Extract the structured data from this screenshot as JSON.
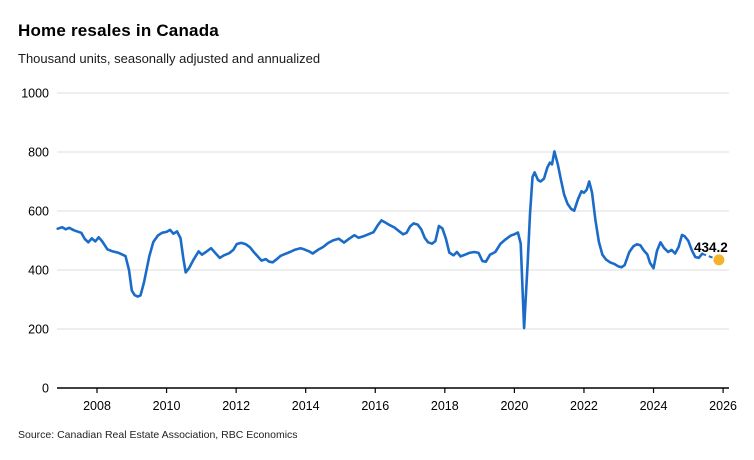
{
  "chart_data": {
    "type": "line",
    "title": "Home resales in Canada",
    "subtitle": "Thousand units, seasonally adjusted and annualized",
    "source": "Source: Canadian Real Estate Association, RBC Economics",
    "xlabel": "",
    "ylabel": "",
    "ylim": [
      0,
      1000
    ],
    "y_ticks": [
      0,
      200,
      400,
      600,
      800,
      1000
    ],
    "x_ticks": [
      2008,
      2010,
      2012,
      2014,
      2016,
      2018,
      2020,
      2022,
      2024,
      2026
    ],
    "xlim": [
      2006.85,
      2026.17
    ],
    "grid": "horizontal",
    "legend": "none",
    "colors": {
      "line": "#1B6CC8",
      "forecast_dot": "#F5B32B",
      "grid": "#DCDCDC",
      "axis": "#000000",
      "label": "#000000"
    },
    "series": [
      {
        "name": "Home resales",
        "color": "#1B6CC8",
        "points": [
          [
            2006.87,
            540
          ],
          [
            2007.0,
            545
          ],
          [
            2007.1,
            538
          ],
          [
            2007.2,
            543
          ],
          [
            2007.33,
            535
          ],
          [
            2007.45,
            530
          ],
          [
            2007.55,
            526
          ],
          [
            2007.65,
            505
          ],
          [
            2007.75,
            494
          ],
          [
            2007.85,
            507
          ],
          [
            2007.95,
            497
          ],
          [
            2008.05,
            511
          ],
          [
            2008.15,
            497
          ],
          [
            2008.3,
            470
          ],
          [
            2008.45,
            463
          ],
          [
            2008.6,
            459
          ],
          [
            2008.72,
            453
          ],
          [
            2008.82,
            447
          ],
          [
            2008.92,
            400
          ],
          [
            2009.0,
            330
          ],
          [
            2009.08,
            315
          ],
          [
            2009.17,
            310
          ],
          [
            2009.25,
            314
          ],
          [
            2009.35,
            358
          ],
          [
            2009.5,
            445
          ],
          [
            2009.62,
            495
          ],
          [
            2009.75,
            517
          ],
          [
            2009.87,
            526
          ],
          [
            2010.0,
            529
          ],
          [
            2010.1,
            536
          ],
          [
            2010.2,
            523
          ],
          [
            2010.3,
            531
          ],
          [
            2010.4,
            508
          ],
          [
            2010.48,
            440
          ],
          [
            2010.55,
            392
          ],
          [
            2010.65,
            407
          ],
          [
            2010.78,
            436
          ],
          [
            2010.92,
            463
          ],
          [
            2011.02,
            452
          ],
          [
            2011.13,
            461
          ],
          [
            2011.28,
            474
          ],
          [
            2011.42,
            455
          ],
          [
            2011.53,
            441
          ],
          [
            2011.65,
            450
          ],
          [
            2011.8,
            457
          ],
          [
            2011.92,
            468
          ],
          [
            2012.02,
            488
          ],
          [
            2012.15,
            492
          ],
          [
            2012.28,
            487
          ],
          [
            2012.4,
            477
          ],
          [
            2012.5,
            462
          ],
          [
            2012.62,
            446
          ],
          [
            2012.73,
            432
          ],
          [
            2012.85,
            437
          ],
          [
            2012.95,
            428
          ],
          [
            2013.05,
            426
          ],
          [
            2013.15,
            435
          ],
          [
            2013.28,
            448
          ],
          [
            2013.4,
            454
          ],
          [
            2013.55,
            461
          ],
          [
            2013.7,
            469
          ],
          [
            2013.85,
            474
          ],
          [
            2013.95,
            470
          ],
          [
            2014.1,
            463
          ],
          [
            2014.2,
            456
          ],
          [
            2014.35,
            468
          ],
          [
            2014.5,
            478
          ],
          [
            2014.65,
            492
          ],
          [
            2014.8,
            501
          ],
          [
            2014.95,
            506
          ],
          [
            2015.1,
            493
          ],
          [
            2015.25,
            506
          ],
          [
            2015.4,
            518
          ],
          [
            2015.52,
            509
          ],
          [
            2015.65,
            514
          ],
          [
            2015.8,
            521
          ],
          [
            2015.95,
            528
          ],
          [
            2016.08,
            553
          ],
          [
            2016.18,
            568
          ],
          [
            2016.3,
            560
          ],
          [
            2016.42,
            552
          ],
          [
            2016.55,
            544
          ],
          [
            2016.67,
            533
          ],
          [
            2016.8,
            521
          ],
          [
            2016.9,
            526
          ],
          [
            2017.0,
            547
          ],
          [
            2017.1,
            558
          ],
          [
            2017.22,
            554
          ],
          [
            2017.32,
            538
          ],
          [
            2017.42,
            509
          ],
          [
            2017.52,
            494
          ],
          [
            2017.63,
            489
          ],
          [
            2017.73,
            498
          ],
          [
            2017.83,
            549
          ],
          [
            2017.93,
            541
          ],
          [
            2018.03,
            506
          ],
          [
            2018.13,
            459
          ],
          [
            2018.25,
            450
          ],
          [
            2018.35,
            461
          ],
          [
            2018.45,
            446
          ],
          [
            2018.58,
            452
          ],
          [
            2018.7,
            458
          ],
          [
            2018.85,
            461
          ],
          [
            2018.97,
            458
          ],
          [
            2019.08,
            430
          ],
          [
            2019.18,
            428
          ],
          [
            2019.3,
            452
          ],
          [
            2019.45,
            461
          ],
          [
            2019.6,
            489
          ],
          [
            2019.75,
            504
          ],
          [
            2019.9,
            517
          ],
          [
            2020.0,
            521
          ],
          [
            2020.1,
            527
          ],
          [
            2020.18,
            490
          ],
          [
            2020.28,
            203
          ],
          [
            2020.38,
            420
          ],
          [
            2020.45,
            590
          ],
          [
            2020.52,
            715
          ],
          [
            2020.58,
            731
          ],
          [
            2020.68,
            705
          ],
          [
            2020.75,
            700
          ],
          [
            2020.85,
            710
          ],
          [
            2020.95,
            748
          ],
          [
            2021.02,
            764
          ],
          [
            2021.08,
            758
          ],
          [
            2021.15,
            802
          ],
          [
            2021.25,
            757
          ],
          [
            2021.33,
            710
          ],
          [
            2021.43,
            656
          ],
          [
            2021.53,
            624
          ],
          [
            2021.63,
            607
          ],
          [
            2021.72,
            601
          ],
          [
            2021.83,
            640
          ],
          [
            2021.93,
            667
          ],
          [
            2022.0,
            662
          ],
          [
            2022.08,
            672
          ],
          [
            2022.15,
            700
          ],
          [
            2022.23,
            663
          ],
          [
            2022.33,
            570
          ],
          [
            2022.43,
            495
          ],
          [
            2022.53,
            452
          ],
          [
            2022.63,
            436
          ],
          [
            2022.75,
            426
          ],
          [
            2022.88,
            420
          ],
          [
            2022.98,
            413
          ],
          [
            2023.08,
            409
          ],
          [
            2023.17,
            417
          ],
          [
            2023.3,
            460
          ],
          [
            2023.42,
            480
          ],
          [
            2023.52,
            487
          ],
          [
            2023.62,
            484
          ],
          [
            2023.72,
            466
          ],
          [
            2023.82,
            453
          ],
          [
            2023.9,
            424
          ],
          [
            2024.0,
            406
          ],
          [
            2024.1,
            465
          ],
          [
            2024.2,
            494
          ],
          [
            2024.3,
            475
          ],
          [
            2024.42,
            461
          ],
          [
            2024.52,
            468
          ],
          [
            2024.62,
            456
          ],
          [
            2024.72,
            478
          ],
          [
            2024.82,
            519
          ],
          [
            2024.9,
            514
          ],
          [
            2025.0,
            499
          ],
          [
            2025.1,
            467
          ],
          [
            2025.2,
            444
          ],
          [
            2025.3,
            441
          ],
          [
            2025.4,
            455
          ]
        ]
      }
    ],
    "forecast": {
      "x": 2025.88,
      "value": 434.2,
      "label": "434.2",
      "dash_from": [
        2025.4,
        455
      ]
    }
  }
}
